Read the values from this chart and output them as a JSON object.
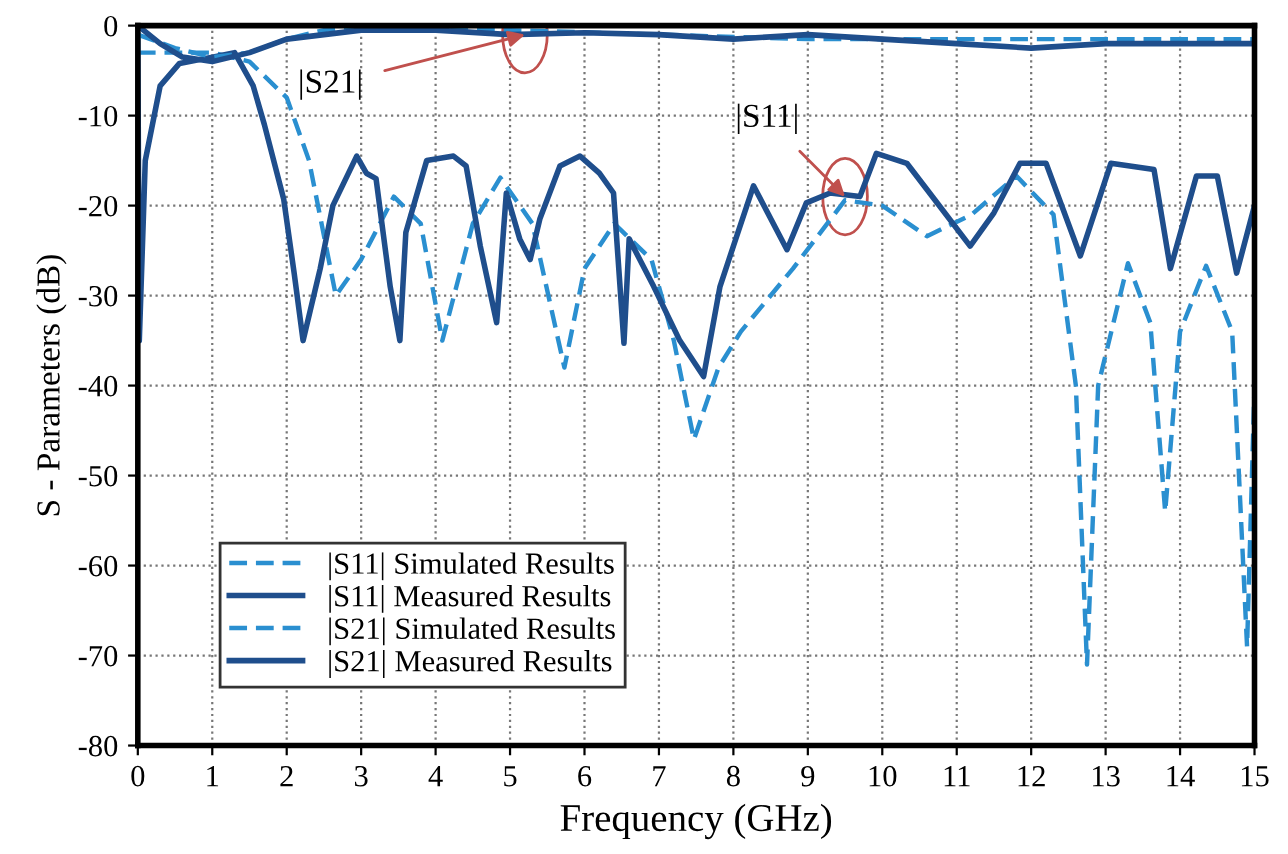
{
  "chart_data": {
    "type": "line",
    "xlabel": "Frequency (GHz)",
    "ylabel": "S - Parameters (dB)",
    "xlim": [
      0,
      15
    ],
    "ylim": [
      -80,
      0
    ],
    "xticks": [
      0,
      1,
      2,
      3,
      4,
      5,
      6,
      7,
      8,
      9,
      10,
      11,
      12,
      13,
      14,
      15
    ],
    "yticks": [
      -80,
      -70,
      -60,
      -50,
      -40,
      -30,
      -20,
      -10,
      0
    ],
    "grid": true,
    "legend": "bottom left",
    "annotations": [
      {
        "text": "|S21|",
        "x": 5.2,
        "y": -1
      },
      {
        "text": "|S11|",
        "x": 9.5,
        "y": -19
      }
    ],
    "series": [
      {
        "name": "|S11| Simulated Results",
        "color": "#2a8fd0",
        "line_style": "dashed",
        "x": [
          0,
          0.5,
          1.0,
          1.5,
          2.0,
          2.3,
          2.66,
          3.0,
          3.44,
          3.8,
          4.09,
          4.5,
          4.87,
          5.3,
          5.73,
          6.0,
          6.4,
          6.9,
          7.2,
          7.47,
          7.8,
          8.1,
          8.8,
          9.5,
          10.0,
          10.6,
          11.2,
          11.8,
          12.3,
          12.6,
          12.75,
          12.9,
          13.3,
          13.6,
          13.8,
          14.0,
          14.35,
          14.7,
          14.9,
          15.0
        ],
        "values": [
          -3,
          -3,
          -3,
          -4,
          -8,
          -15,
          -30,
          -26,
          -19,
          -22,
          -35,
          -22,
          -16.9,
          -22,
          -38,
          -27,
          -22,
          -26,
          -35,
          -46,
          -38,
          -34,
          -27,
          -19.4,
          -20,
          -23.4,
          -21,
          -16.7,
          -21,
          -40,
          -71,
          -40,
          -26.4,
          -33,
          -54,
          -34,
          -26.7,
          -34,
          -69,
          -40
        ]
      },
      {
        "name": "|S11| Measured Results",
        "color": "#1f4e8c",
        "line_style": "solid",
        "x": [
          0,
          0.02,
          0.1,
          0.3,
          0.56,
          1.0,
          1.3,
          1.55,
          1.7,
          1.96,
          2.1,
          2.22,
          2.45,
          2.62,
          2.94,
          3.07,
          3.2,
          3.39,
          3.52,
          3.6,
          3.88,
          4.24,
          4.41,
          4.6,
          4.82,
          4.95,
          5.13,
          5.27,
          5.4,
          5.67,
          5.94,
          6.2,
          6.39,
          6.53,
          6.6,
          6.93,
          7.28,
          7.6,
          7.82,
          8.0,
          8.27,
          8.72,
          8.98,
          9.3,
          9.7,
          9.92,
          10.33,
          10.7,
          11.18,
          11.5,
          11.85,
          12.2,
          12.66,
          13.07,
          13.65,
          13.87,
          14.22,
          14.5,
          14.76,
          15.0
        ],
        "values": [
          -1,
          -35,
          -15,
          -6.7,
          -4.2,
          -3.5,
          -3,
          -6.7,
          -11,
          -19.3,
          -27.5,
          -35,
          -27,
          -20,
          -14.5,
          -16.4,
          -17,
          -29,
          -35,
          -23,
          -15,
          -14.5,
          -15.6,
          -24.5,
          -33,
          -18.6,
          -23.7,
          -26,
          -21.5,
          -15.6,
          -14.5,
          -16.4,
          -18.6,
          -35.3,
          -23.7,
          -29,
          -35,
          -39,
          -29,
          -24.5,
          -17.8,
          -24.9,
          -19.7,
          -18.6,
          -19,
          -14.2,
          -15.3,
          -19.3,
          -24.5,
          -20.8,
          -15.3,
          -15.3,
          -25.6,
          -15.3,
          -16,
          -27,
          -16.7,
          -16.7,
          -27.5,
          -20
        ]
      },
      {
        "name": "|S21| Simulated Results",
        "color": "#2a8fd0",
        "line_style": "dashed",
        "x": [
          0,
          0.5,
          1.0,
          1.5,
          2.0,
          2.5,
          3.0,
          5.0,
          7.0,
          9.0,
          11.0,
          13.0,
          15.0
        ],
        "values": [
          -1,
          -2.5,
          -3.5,
          -3,
          -1.5,
          -0.5,
          0,
          -0.5,
          -1,
          -1.5,
          -1.5,
          -1.5,
          -1.5
        ]
      },
      {
        "name": "|S21| Measured Results",
        "color": "#1f4e8c",
        "line_style": "solid",
        "x": [
          0,
          0.3,
          0.6,
          1.0,
          1.5,
          2.0,
          3.0,
          4.0,
          5.0,
          6.0,
          7.0,
          8.0,
          9.0,
          10.0,
          11.0,
          12.0,
          13.0,
          14.0,
          15.0
        ],
        "values": [
          0,
          -2,
          -3.5,
          -4,
          -3,
          -1.5,
          -0.5,
          -0.5,
          -1,
          -0.8,
          -1,
          -1.5,
          -1,
          -1.5,
          -2,
          -2.5,
          -2,
          -2,
          -2
        ]
      }
    ]
  }
}
